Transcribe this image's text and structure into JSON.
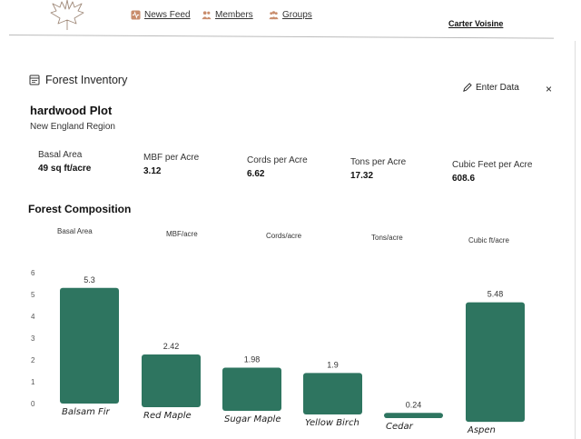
{
  "nav": {
    "items": [
      {
        "label": "News Feed",
        "icon": "activity-icon"
      },
      {
        "label": "Members",
        "icon": "members-icon"
      },
      {
        "label": "Groups",
        "icon": "groups-icon"
      }
    ],
    "user_name": "Carter Voisine"
  },
  "panel": {
    "title": "Forest Inventory",
    "enter_data_label": "Enter Data",
    "close_label": "×"
  },
  "plot": {
    "name": "hardwood Plot",
    "region": "New England Region"
  },
  "stats": [
    {
      "label": "Basal Area",
      "value": "49 sq ft/acre"
    },
    {
      "label": "MBF per Acre",
      "value": "3.12"
    },
    {
      "label": "Cords per Acre",
      "value": "6.62"
    },
    {
      "label": "Tons per Acre",
      "value": "17.32"
    },
    {
      "label": "Cubic Feet per Acre",
      "value": "608.6"
    }
  ],
  "composition": {
    "title": "Forest Composition",
    "metric_tabs": [
      "Basal Area",
      "MBF/acre",
      "Cords/acre",
      "Tons/acre",
      "Cubic ft/acre"
    ]
  },
  "chart_data": {
    "type": "bar",
    "categories": [
      "Balsam Fir",
      "Red Maple",
      "Sugar Maple",
      "Yellow Birch",
      "Cedar",
      "Aspen"
    ],
    "values": [
      5.3,
      2.42,
      1.98,
      1.9,
      0.24,
      5.48
    ],
    "data_labels": [
      "5.3",
      "2.42",
      "1.98",
      "1.9",
      "0.24",
      "5.48"
    ],
    "y_ticks": [
      0,
      1,
      2,
      3,
      4,
      5,
      6
    ],
    "ylim": [
      0,
      6
    ],
    "grid": false,
    "bar_color": "#2e7560"
  }
}
